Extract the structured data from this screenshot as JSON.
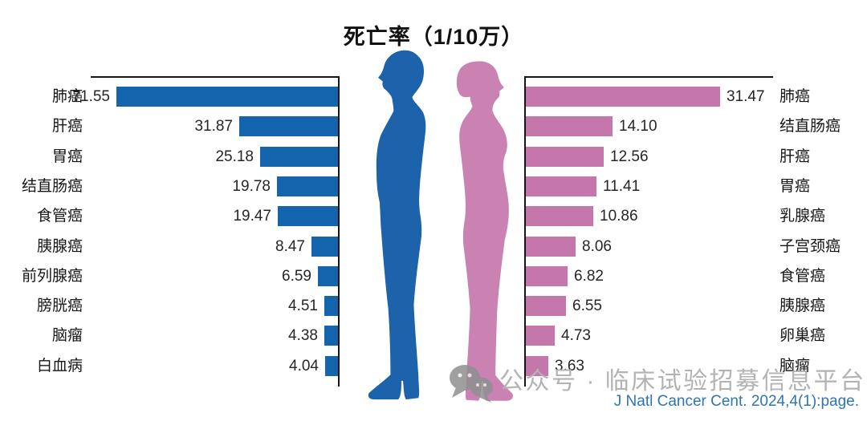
{
  "title": "死亡率（1/10万）",
  "citation": "J Natl Cancer Cent. 2024,4(1):page.",
  "watermark": {
    "text": "公众号 · 临床试验招募信息平台",
    "logo": "wechat-logo-icon"
  },
  "colors": {
    "male_bar": "#1565ae",
    "female_bar": "#c577ab",
    "male_figure": "#1d63ab",
    "female_figure": "#ca82b3",
    "axis": "#161616",
    "citation": "#2e75b5",
    "watermark_text": "#b3b3b3",
    "watermark_logo": "#8f8f8f"
  },
  "chart_data": [
    {
      "type": "bar",
      "group": "male",
      "side": "left",
      "orientation": "horizontal",
      "direction": "right-to-left",
      "bar_color": "#1565ae",
      "categories": [
        "肺癌",
        "肝癌",
        "胃癌",
        "结直肠癌",
        "食管癌",
        "胰腺癌",
        "前列腺癌",
        "膀胱癌",
        "脑瘤",
        "白血病"
      ],
      "values": [
        71.55,
        31.87,
        25.18,
        19.78,
        19.47,
        8.47,
        6.59,
        4.51,
        4.38,
        4.04
      ],
      "xlim": [
        0,
        71.55
      ],
      "value_labels": "two-decimals, outside bar end",
      "grid": false,
      "legend": "none (male silhouette pictogram)"
    },
    {
      "type": "bar",
      "group": "female",
      "side": "right",
      "orientation": "horizontal",
      "direction": "left-to-right",
      "bar_color": "#c577ab",
      "categories": [
        "肺癌",
        "结直肠癌",
        "肝癌",
        "胃癌",
        "乳腺癌",
        "子宫颈癌",
        "食管癌",
        "胰腺癌",
        "卵巢癌",
        "脑瘤"
      ],
      "values": [
        31.47,
        14.1,
        12.56,
        11.41,
        10.86,
        8.06,
        6.82,
        6.55,
        4.73,
        3.63
      ],
      "xlim": [
        0,
        31.47
      ],
      "value_labels": "two-decimals, outside bar end",
      "grid": false,
      "legend": "none (female silhouette pictogram)"
    }
  ]
}
